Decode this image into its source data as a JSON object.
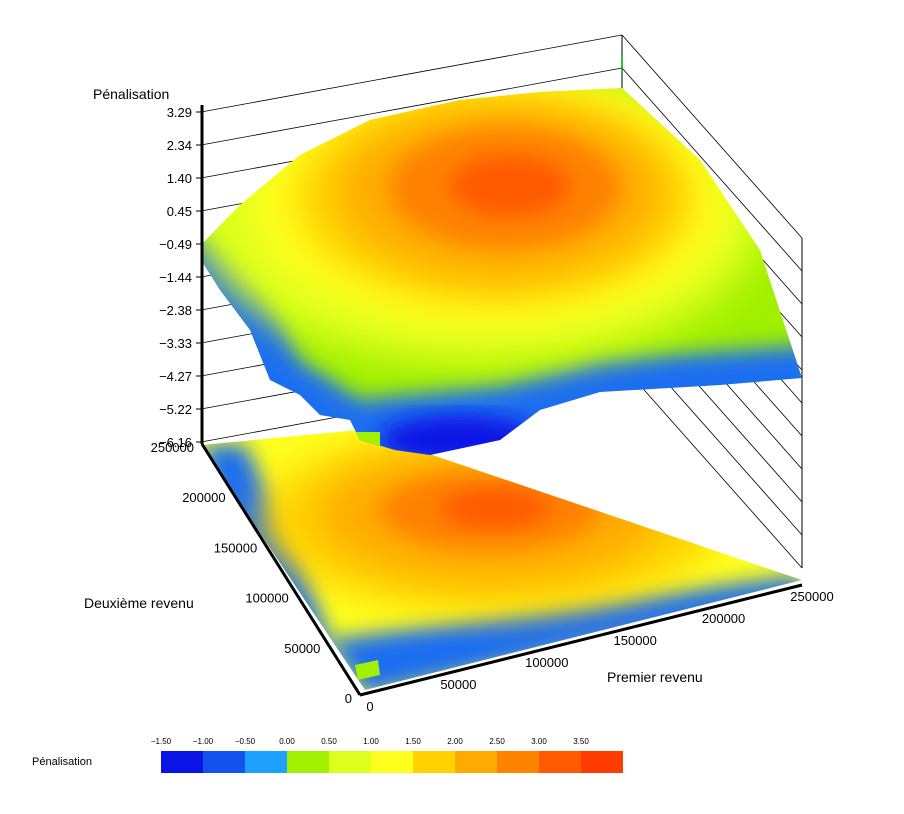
{
  "chart_data": {
    "type": "surface",
    "zlabel": "Pénalisation",
    "xlabel": "Premier revenu",
    "ylabel": "Deuxième revenu",
    "z_ticks": [
      "3.29",
      "2.34",
      "1.40",
      "0.45",
      "−0.49",
      "−1.44",
      "−2.38",
      "−3.33",
      "−4.27",
      "−5.22",
      "−6.16"
    ],
    "zlim": [
      -6.16,
      3.29
    ],
    "x_ticks": [
      "0",
      "50000",
      "100000",
      "150000",
      "200000",
      "250000"
    ],
    "y_ticks": [
      "0",
      "50000",
      "100000",
      "150000",
      "200000",
      "250000"
    ],
    "xlim": [
      0,
      250000
    ],
    "ylim": [
      0,
      250000
    ],
    "surface_approx": {
      "peak": {
        "x": 115000,
        "y": 160000,
        "z": 3.0
      },
      "edge_min": -5.5
    },
    "legend": {
      "title": "Pénalisation",
      "labels": [
        "−1.50",
        "−1.00",
        "−0.50",
        "0.00",
        "0.50",
        "1.00",
        "1.50",
        "2.00",
        "2.50",
        "3.00",
        "3.50"
      ],
      "colors": [
        "#0a14e6",
        "#1452f0",
        "#1ea0ff",
        "#a0f000",
        "#dcff1e",
        "#ffff1e",
        "#ffd200",
        "#ffaa00",
        "#ff8200",
        "#ff5a00",
        "#ff3c00"
      ]
    }
  }
}
